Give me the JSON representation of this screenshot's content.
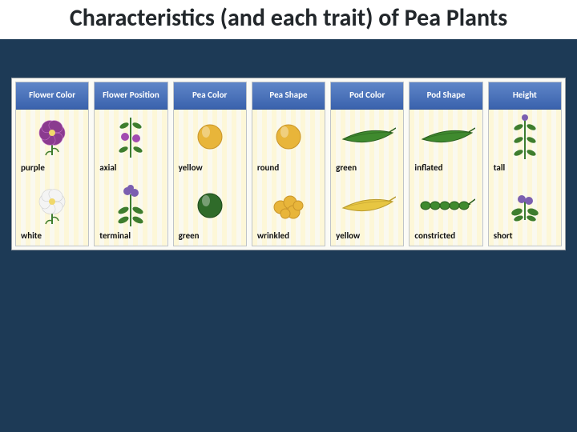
{
  "title": "Characteristics (and each trait) of Pea Plants",
  "background_color": "#1d3a56",
  "chart": {
    "type": "table",
    "header_bg_gradient": [
      "#5f86c8",
      "#3a62ad"
    ],
    "header_text_color": "#ffffff",
    "cell_stripe_colors": [
      "#fdf7d8",
      "#faf9ef"
    ],
    "border_color": "#bfc4c9",
    "columns": [
      {
        "header": "Flower Color",
        "traits": [
          {
            "label": "purple",
            "icon": "flower-purple",
            "color": "#8a3b8f",
            "accent": "#c06ec4"
          },
          {
            "label": "white",
            "icon": "flower-white",
            "color": "#f4f4f4",
            "accent": "#d0d0d0"
          }
        ]
      },
      {
        "header": "Flower Position",
        "traits": [
          {
            "label": "axial",
            "icon": "plant-axial",
            "color": "#3e7d2e",
            "accent": "#a24bb0"
          },
          {
            "label": "terminal",
            "icon": "plant-terminal",
            "color": "#3e7d2e",
            "accent": "#7b5fb0"
          }
        ]
      },
      {
        "header": "Pea Color",
        "traits": [
          {
            "label": "yellow",
            "icon": "pea-round",
            "color": "#e8b53a",
            "accent": "#c9952a"
          },
          {
            "label": "green",
            "icon": "pea-round",
            "color": "#2f6b2a",
            "accent": "#1f4a1c"
          }
        ]
      },
      {
        "header": "Pea Shape",
        "traits": [
          {
            "label": "round",
            "icon": "pea-round",
            "color": "#e8b53a",
            "accent": "#c9952a"
          },
          {
            "label": "wrinkled",
            "icon": "pea-wrinkled",
            "color": "#e8b53a",
            "accent": "#c9952a"
          }
        ]
      },
      {
        "header": "Pod Color",
        "traits": [
          {
            "label": "green",
            "icon": "pod",
            "color": "#3f8a2e",
            "accent": "#2a5e1f"
          },
          {
            "label": "yellow",
            "icon": "pod",
            "color": "#e7c642",
            "accent": "#b99a2c"
          }
        ]
      },
      {
        "header": "Pod Shape",
        "traits": [
          {
            "label": "inflated",
            "icon": "pod",
            "color": "#3f8a2e",
            "accent": "#2a5e1f"
          },
          {
            "label": "constricted",
            "icon": "pod-constricted",
            "color": "#3f8a2e",
            "accent": "#2a5e1f"
          }
        ]
      },
      {
        "header": "Height",
        "traits": [
          {
            "label": "tall",
            "icon": "plant-tall",
            "color": "#3e7d2e",
            "accent": "#7b5fb0"
          },
          {
            "label": "short",
            "icon": "plant-short",
            "color": "#3e7d2e",
            "accent": "#7b5fb0"
          }
        ]
      }
    ]
  }
}
